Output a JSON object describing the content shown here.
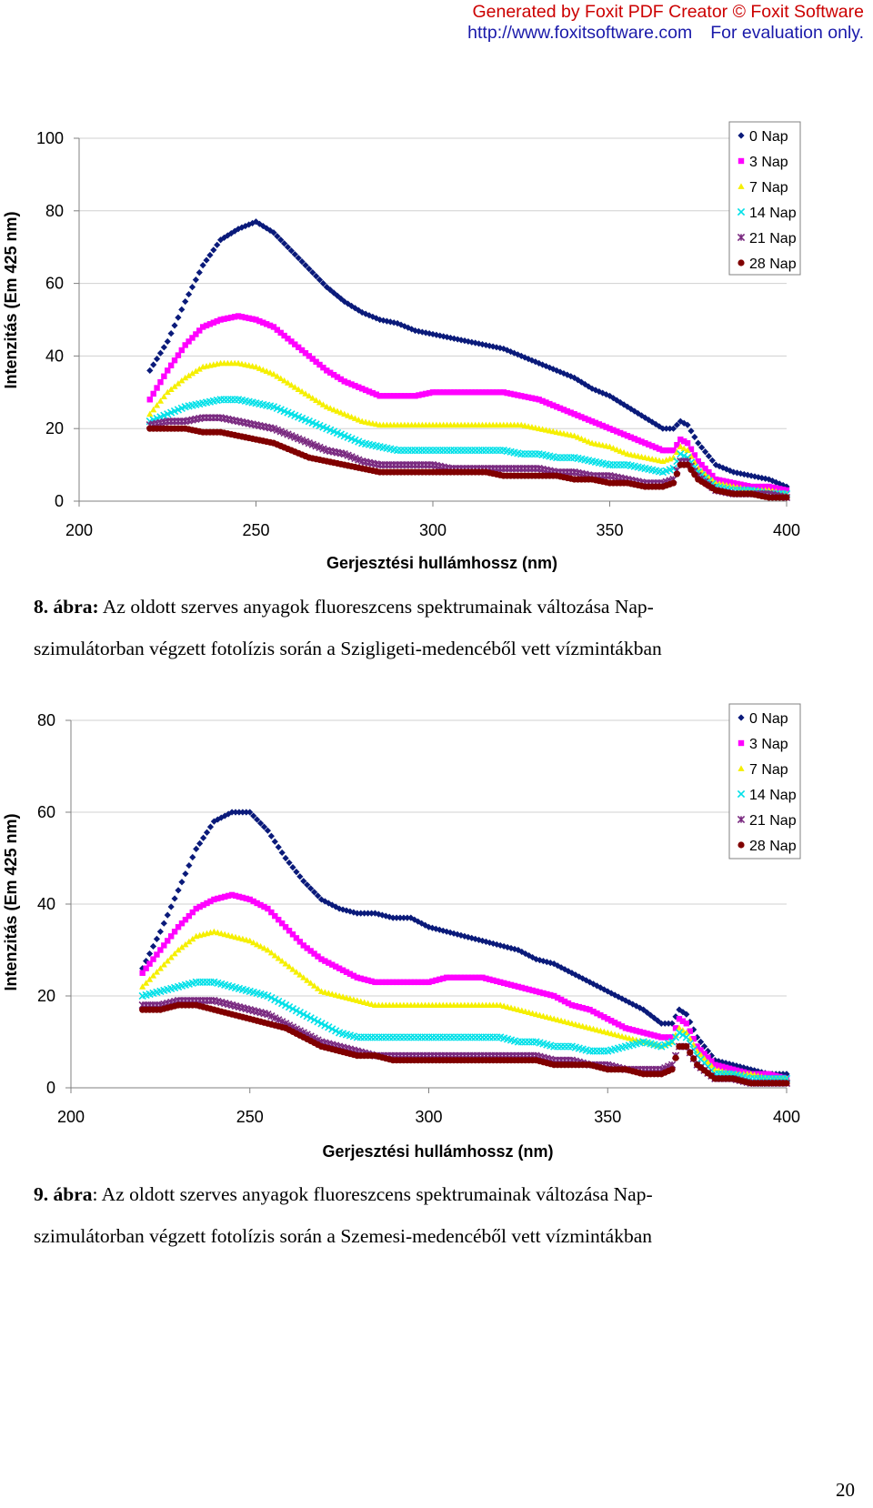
{
  "watermark": {
    "line1": "Generated by Foxit PDF Creator © Foxit Software",
    "line2a": "http://www.foxitsoftware.com",
    "line2b": "For evaluation only."
  },
  "chart_data": [
    {
      "type": "scatter",
      "title": "",
      "xlabel": "Gerjesztési hullámhossz (nm)",
      "ylabel": "Intenzitás (Em 425 nm)",
      "xlim": [
        200,
        400
      ],
      "ylim": [
        0,
        100
      ],
      "xticks": [
        200,
        250,
        300,
        350,
        400
      ],
      "yticks": [
        0,
        20,
        40,
        60,
        80,
        100
      ],
      "grid": true,
      "legend_position": "top-right",
      "series": [
        {
          "name": "0 Nap",
          "color": "#0a1a7a",
          "marker": "diamond",
          "x": [
            220,
            225,
            230,
            235,
            240,
            245,
            250,
            255,
            260,
            265,
            270,
            275,
            280,
            285,
            290,
            295,
            300,
            305,
            310,
            315,
            320,
            325,
            330,
            335,
            340,
            345,
            350,
            355,
            360,
            365,
            368,
            370,
            372,
            375,
            380,
            385,
            390,
            395,
            400
          ],
          "y": [
            36,
            44,
            55,
            65,
            72,
            75,
            77,
            74,
            69,
            64,
            59,
            55,
            52,
            50,
            49,
            47,
            46,
            45,
            44,
            43,
            42,
            40,
            38,
            36,
            34,
            31,
            29,
            26,
            23,
            20,
            20,
            22,
            21,
            16,
            10,
            8,
            7,
            6,
            4
          ]
        },
        {
          "name": "3 Nap",
          "color": "#ff00ff",
          "marker": "square",
          "x": [
            220,
            225,
            230,
            235,
            240,
            245,
            250,
            255,
            260,
            265,
            270,
            275,
            280,
            285,
            290,
            295,
            300,
            305,
            310,
            315,
            320,
            325,
            330,
            335,
            340,
            345,
            350,
            355,
            360,
            365,
            368,
            370,
            372,
            375,
            380,
            385,
            390,
            395,
            400
          ],
          "y": [
            28,
            36,
            43,
            48,
            50,
            51,
            50,
            48,
            44,
            40,
            36,
            33,
            31,
            29,
            29,
            29,
            30,
            30,
            30,
            30,
            30,
            29,
            28,
            26,
            24,
            22,
            20,
            18,
            16,
            14,
            14,
            17,
            16,
            11,
            6,
            5,
            4,
            4,
            3
          ]
        },
        {
          "name": "7 Nap",
          "color": "#f5ef00",
          "marker": "triangle",
          "x": [
            220,
            225,
            230,
            235,
            240,
            245,
            250,
            255,
            260,
            265,
            270,
            275,
            280,
            285,
            290,
            295,
            300,
            305,
            310,
            315,
            320,
            325,
            330,
            335,
            340,
            345,
            350,
            355,
            360,
            365,
            368,
            370,
            372,
            375,
            380,
            385,
            390,
            395,
            400
          ],
          "y": [
            24,
            30,
            34,
            37,
            38,
            38,
            37,
            35,
            32,
            29,
            26,
            24,
            22,
            21,
            21,
            21,
            21,
            21,
            21,
            21,
            21,
            21,
            20,
            19,
            18,
            16,
            15,
            13,
            12,
            11,
            12,
            15,
            14,
            9,
            5,
            4,
            3,
            3,
            2
          ]
        },
        {
          "name": "14 Nap",
          "color": "#00e0e8",
          "marker": "x",
          "x": [
            220,
            225,
            230,
            235,
            240,
            245,
            250,
            255,
            260,
            265,
            270,
            275,
            280,
            285,
            290,
            295,
            300,
            305,
            310,
            315,
            320,
            325,
            330,
            335,
            340,
            345,
            350,
            355,
            360,
            365,
            368,
            370,
            372,
            375,
            380,
            385,
            390,
            395,
            400
          ],
          "y": [
            22,
            24,
            26,
            27,
            28,
            28,
            27,
            26,
            24,
            22,
            20,
            18,
            16,
            15,
            14,
            14,
            14,
            14,
            14,
            14,
            14,
            13,
            13,
            12,
            12,
            11,
            10,
            10,
            9,
            8,
            9,
            13,
            12,
            8,
            4,
            3,
            3,
            2,
            2
          ]
        },
        {
          "name": "21 Nap",
          "color": "#7a2a80",
          "marker": "asterisk",
          "x": [
            220,
            225,
            230,
            235,
            240,
            245,
            250,
            255,
            260,
            265,
            270,
            275,
            280,
            285,
            290,
            295,
            300,
            305,
            310,
            315,
            320,
            325,
            330,
            335,
            340,
            345,
            350,
            355,
            360,
            365,
            368,
            370,
            372,
            375,
            380,
            385,
            390,
            395,
            400
          ],
          "y": [
            21,
            22,
            22,
            23,
            23,
            22,
            21,
            20,
            18,
            16,
            14,
            13,
            11,
            10,
            10,
            10,
            10,
            9,
            9,
            9,
            9,
            9,
            9,
            8,
            8,
            7,
            7,
            6,
            5,
            5,
            6,
            11,
            11,
            7,
            3,
            2,
            2,
            2,
            1
          ]
        },
        {
          "name": "28 Nap",
          "color": "#800000",
          "marker": "circle",
          "x": [
            220,
            225,
            230,
            235,
            240,
            245,
            250,
            255,
            260,
            265,
            270,
            275,
            280,
            285,
            290,
            295,
            300,
            305,
            310,
            315,
            320,
            325,
            330,
            335,
            340,
            345,
            350,
            355,
            360,
            365,
            368,
            370,
            372,
            375,
            380,
            385,
            390,
            395,
            400
          ],
          "y": [
            20,
            20,
            20,
            19,
            19,
            18,
            17,
            16,
            14,
            12,
            11,
            10,
            9,
            8,
            8,
            8,
            8,
            8,
            8,
            8,
            7,
            7,
            7,
            7,
            6,
            6,
            5,
            5,
            4,
            4,
            5,
            10,
            10,
            6,
            3,
            2,
            2,
            1,
            1
          ]
        }
      ]
    },
    {
      "type": "scatter",
      "title": "",
      "xlabel": "Gerjesztési hullámhossz (nm)",
      "ylabel": "Intenzitás (Em 425 nm)",
      "xlim": [
        200,
        400
      ],
      "ylim": [
        0,
        80
      ],
      "xticks": [
        200,
        250,
        300,
        350,
        400
      ],
      "yticks": [
        0,
        20,
        40,
        60,
        80
      ],
      "grid": true,
      "legend_position": "top-right",
      "series": [
        {
          "name": "0 Nap",
          "color": "#0a1a7a",
          "marker": "diamond",
          "x": [
            220,
            225,
            230,
            235,
            240,
            245,
            250,
            255,
            260,
            265,
            270,
            275,
            280,
            285,
            290,
            295,
            300,
            305,
            310,
            315,
            320,
            325,
            330,
            335,
            340,
            345,
            350,
            355,
            360,
            365,
            368,
            370,
            372,
            375,
            380,
            385,
            390,
            395,
            400
          ],
          "y": [
            26,
            34,
            43,
            52,
            58,
            60,
            60,
            56,
            50,
            45,
            41,
            39,
            38,
            38,
            37,
            37,
            35,
            34,
            33,
            32,
            31,
            30,
            28,
            27,
            25,
            23,
            21,
            19,
            17,
            14,
            14,
            17,
            16,
            11,
            6,
            5,
            4,
            3,
            3
          ]
        },
        {
          "name": "3 Nap",
          "color": "#ff00ff",
          "marker": "square",
          "x": [
            220,
            225,
            230,
            235,
            240,
            245,
            250,
            255,
            260,
            265,
            270,
            275,
            280,
            285,
            290,
            295,
            300,
            305,
            310,
            315,
            320,
            325,
            330,
            335,
            340,
            345,
            350,
            355,
            360,
            365,
            368,
            370,
            372,
            375,
            380,
            385,
            390,
            395,
            400
          ],
          "y": [
            25,
            30,
            35,
            39,
            41,
            42,
            41,
            39,
            35,
            31,
            28,
            26,
            24,
            23,
            23,
            23,
            23,
            24,
            24,
            24,
            23,
            22,
            21,
            20,
            18,
            17,
            15,
            13,
            12,
            11,
            11,
            15,
            14,
            9,
            5,
            4,
            3,
            3,
            2
          ]
        },
        {
          "name": "7 Nap",
          "color": "#f5ef00",
          "marker": "triangle",
          "x": [
            220,
            225,
            230,
            235,
            240,
            245,
            250,
            255,
            260,
            265,
            270,
            275,
            280,
            285,
            290,
            295,
            300,
            305,
            310,
            315,
            320,
            325,
            330,
            335,
            340,
            345,
            350,
            355,
            360,
            365,
            368,
            370,
            372,
            375,
            380,
            385,
            390,
            395,
            400
          ],
          "y": [
            22,
            26,
            30,
            33,
            34,
            33,
            32,
            30,
            27,
            24,
            21,
            20,
            19,
            18,
            18,
            18,
            18,
            18,
            18,
            18,
            18,
            17,
            16,
            15,
            14,
            13,
            12,
            11,
            10,
            9,
            10,
            13,
            12,
            8,
            4,
            3,
            3,
            2,
            2
          ]
        },
        {
          "name": "14 Nap",
          "color": "#00e0e8",
          "marker": "x",
          "x": [
            220,
            225,
            230,
            235,
            240,
            245,
            250,
            255,
            260,
            265,
            270,
            275,
            280,
            285,
            290,
            295,
            300,
            305,
            310,
            315,
            320,
            325,
            330,
            335,
            340,
            345,
            350,
            355,
            360,
            365,
            368,
            370,
            372,
            375,
            380,
            385,
            390,
            395,
            400
          ],
          "y": [
            20,
            21,
            22,
            23,
            23,
            22,
            21,
            20,
            18,
            16,
            14,
            12,
            11,
            11,
            11,
            11,
            11,
            11,
            11,
            11,
            11,
            10,
            10,
            9,
            9,
            8,
            8,
            9,
            10,
            9,
            10,
            12,
            11,
            7,
            3,
            3,
            2,
            2,
            2
          ]
        },
        {
          "name": "21 Nap",
          "color": "#7a2a80",
          "marker": "asterisk",
          "x": [
            220,
            225,
            230,
            235,
            240,
            245,
            250,
            255,
            260,
            265,
            270,
            275,
            280,
            285,
            290,
            295,
            300,
            305,
            310,
            315,
            320,
            325,
            330,
            335,
            340,
            345,
            350,
            355,
            360,
            365,
            368,
            370,
            372,
            375,
            380,
            385,
            390,
            395,
            400
          ],
          "y": [
            18,
            18,
            19,
            19,
            19,
            18,
            17,
            16,
            14,
            12,
            10,
            9,
            8,
            7,
            7,
            7,
            7,
            7,
            7,
            7,
            7,
            7,
            7,
            6,
            6,
            5,
            5,
            4,
            4,
            4,
            5,
            9,
            9,
            5,
            2,
            2,
            1,
            1,
            1
          ]
        },
        {
          "name": "28 Nap",
          "color": "#800000",
          "marker": "circle",
          "x": [
            220,
            225,
            230,
            235,
            240,
            245,
            250,
            255,
            260,
            265,
            270,
            275,
            280,
            285,
            290,
            295,
            300,
            305,
            310,
            315,
            320,
            325,
            330,
            335,
            340,
            345,
            350,
            355,
            360,
            365,
            368,
            370,
            372,
            375,
            380,
            385,
            390,
            395,
            400
          ],
          "y": [
            17,
            17,
            18,
            18,
            17,
            16,
            15,
            14,
            13,
            11,
            9,
            8,
            7,
            7,
            6,
            6,
            6,
            6,
            6,
            6,
            6,
            6,
            6,
            5,
            5,
            5,
            4,
            4,
            3,
            3,
            4,
            9,
            9,
            5,
            2,
            2,
            1,
            1,
            1
          ]
        }
      ]
    }
  ],
  "captions": [
    {
      "number": "8.",
      "label": "ábra:",
      "text_line1": "Az oldott szerves anyagok fluoreszcens spektrumainak változása Nap-",
      "text_line2": "szimulátorban végzett fotolízis során a Szigligeti-medencéből vett vízmintákban"
    },
    {
      "number": "9.",
      "label": "ábra",
      "text_line1": ": Az oldott szerves anyagok fluoreszcens spektrumainak változása Nap-",
      "text_line2": "szimulátorban végzett fotolízis során a Szemesi-medencéből vett vízmintákban"
    }
  ],
  "page_number": "20"
}
